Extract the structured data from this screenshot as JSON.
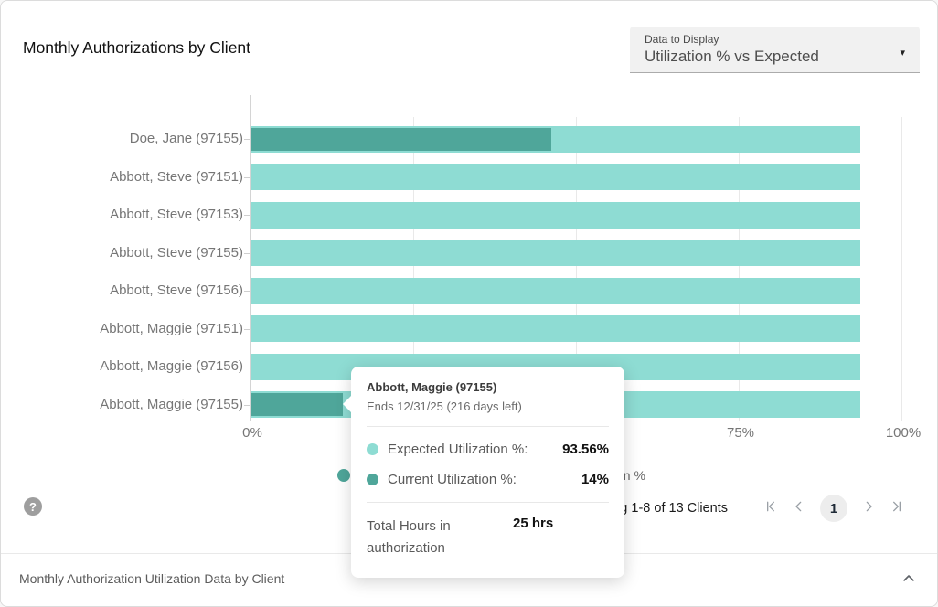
{
  "header": {
    "title": "Monthly Authorizations by Client",
    "data_to_display": {
      "label": "Data to Display",
      "value": "Utilization % vs Expected"
    }
  },
  "icons": {
    "dropdown_caret": "▾",
    "help": "?"
  },
  "chart_data": {
    "type": "bar",
    "orientation": "horizontal",
    "categories": [
      "Doe, Jane (97155)",
      "Abbott, Steve (97151)",
      "Abbott, Steve (97153)",
      "Abbott, Steve (97155)",
      "Abbott, Steve (97156)",
      "Abbott, Maggie (97151)",
      "Abbott, Maggie (97156)",
      "Abbott, Maggie (97155)"
    ],
    "series": [
      {
        "name": "Expected Utilization %",
        "color": "#8EDCD3",
        "values": [
          93.56,
          93.56,
          93.56,
          93.56,
          93.56,
          93.56,
          93.56,
          93.56
        ]
      },
      {
        "name": "Current Utilization %",
        "color": "#4FA69A",
        "values": [
          46,
          0,
          0,
          0,
          0,
          0,
          0,
          14
        ]
      }
    ],
    "x_ticks": [
      "0%",
      "25%",
      "50%",
      "75%",
      "100%"
    ],
    "xlim": [
      0,
      100
    ],
    "grid": true,
    "legend_position": "bottom",
    "legend": [
      {
        "label": "Current Utilization %",
        "color": "#4FA69A"
      },
      {
        "label": "Expected Utilization %",
        "color": "#8EDCD3"
      }
    ]
  },
  "tooltip": {
    "title": "Abbott, Maggie (97155)",
    "subtitle": "Ends 12/31/25 (216 days left)",
    "rows": [
      {
        "label": "Expected Utilization %:",
        "value": "93.56%",
        "color": "#8EDCD3"
      },
      {
        "label": "Current Utilization %:",
        "value": "14%",
        "color": "#4FA69A"
      }
    ],
    "footer": {
      "label": "Total Hours in authorization",
      "value": "25 hrs"
    }
  },
  "pagination": {
    "summary": "Showing 1-8 of 13 Clients",
    "page": "1"
  },
  "footer_panel": {
    "title": "Monthly Authorization Utilization Data by Client"
  }
}
